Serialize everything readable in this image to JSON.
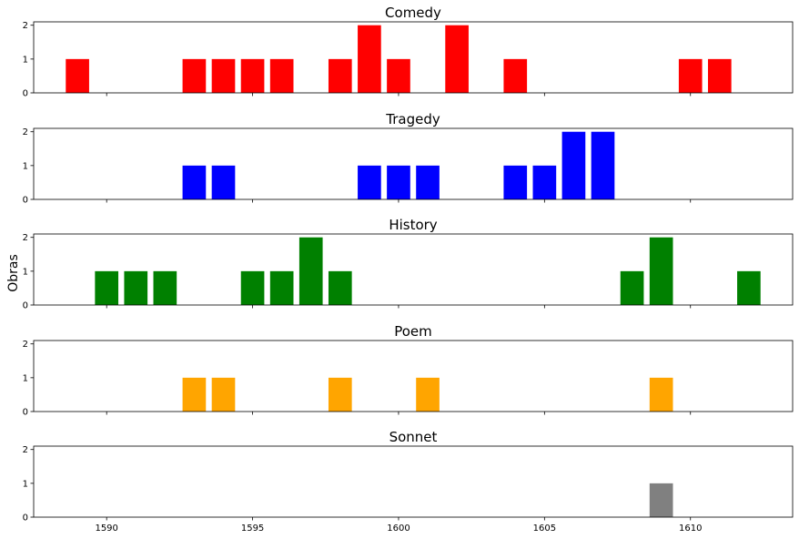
{
  "chart_data": {
    "type": "bar",
    "ylabel": "Obras",
    "xlim": [
      1587.5,
      1613.5
    ],
    "ylim": [
      0,
      2.1
    ],
    "xticks": [
      "1590",
      "1595",
      "1600",
      "1605",
      "1610"
    ],
    "yticks": [
      "0",
      "1",
      "2"
    ],
    "grid": false,
    "panels": [
      {
        "title": "Comedy",
        "color": "#ff0000",
        "points": [
          {
            "x": 1589,
            "y": 1
          },
          {
            "x": 1593,
            "y": 1
          },
          {
            "x": 1594,
            "y": 1
          },
          {
            "x": 1595,
            "y": 1
          },
          {
            "x": 1596,
            "y": 1
          },
          {
            "x": 1598,
            "y": 1
          },
          {
            "x": 1599,
            "y": 2
          },
          {
            "x": 1600,
            "y": 1
          },
          {
            "x": 1602,
            "y": 2
          },
          {
            "x": 1604,
            "y": 1
          },
          {
            "x": 1610,
            "y": 1
          },
          {
            "x": 1611,
            "y": 1
          }
        ]
      },
      {
        "title": "Tragedy",
        "color": "#0000ff",
        "points": [
          {
            "x": 1593,
            "y": 1
          },
          {
            "x": 1594,
            "y": 1
          },
          {
            "x": 1599,
            "y": 1
          },
          {
            "x": 1600,
            "y": 1
          },
          {
            "x": 1601,
            "y": 1
          },
          {
            "x": 1604,
            "y": 1
          },
          {
            "x": 1605,
            "y": 1
          },
          {
            "x": 1606,
            "y": 2
          },
          {
            "x": 1607,
            "y": 2
          }
        ]
      },
      {
        "title": "History",
        "color": "#008000",
        "points": [
          {
            "x": 1590,
            "y": 1
          },
          {
            "x": 1591,
            "y": 1
          },
          {
            "x": 1592,
            "y": 1
          },
          {
            "x": 1595,
            "y": 1
          },
          {
            "x": 1596,
            "y": 1
          },
          {
            "x": 1597,
            "y": 2
          },
          {
            "x": 1598,
            "y": 1
          },
          {
            "x": 1608,
            "y": 1
          },
          {
            "x": 1609,
            "y": 2
          },
          {
            "x": 1612,
            "y": 1
          }
        ]
      },
      {
        "title": "Poem",
        "color": "#ffa500",
        "points": [
          {
            "x": 1593,
            "y": 1
          },
          {
            "x": 1594,
            "y": 1
          },
          {
            "x": 1598,
            "y": 1
          },
          {
            "x": 1601,
            "y": 1
          },
          {
            "x": 1609,
            "y": 1
          }
        ]
      },
      {
        "title": "Sonnet",
        "color": "#808080",
        "points": [
          {
            "x": 1609,
            "y": 1
          }
        ]
      }
    ]
  }
}
